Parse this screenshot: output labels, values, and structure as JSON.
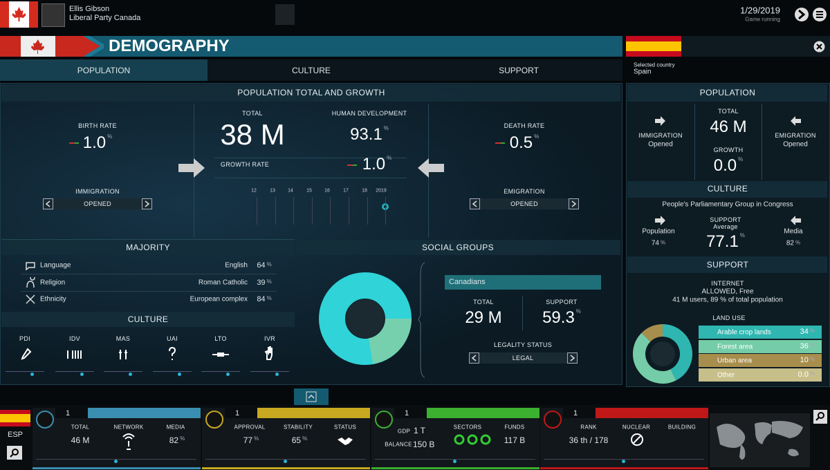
{
  "top_bar": {
    "player_name": "Ellis Gibson",
    "party": "Liberal Party Canada",
    "date": "1/29/2019",
    "status": "Game running"
  },
  "header": {
    "title": "DEMOGRAPHY"
  },
  "tabs": [
    "POPULATION",
    "CULTURE",
    "SUPPORT"
  ],
  "selected_country": {
    "label": "Selected country",
    "name": "Spain"
  },
  "growth": {
    "title": "POPULATION TOTAL AND GROWTH",
    "birth_rate": {
      "label": "BIRTH RATE",
      "value": "1.0",
      "unit": "%"
    },
    "total": {
      "label": "TOTAL",
      "value": "38 M"
    },
    "human_development": {
      "label": "HUMAN DEVELOPMENT",
      "value": "93.1",
      "unit": "%"
    },
    "growth_rate": {
      "label": "GROWTH RATE",
      "value": "1.0",
      "unit": "%"
    },
    "death_rate": {
      "label": "DEATH RATE",
      "value": "0.5",
      "unit": "%"
    },
    "years": [
      "12",
      "13",
      "14",
      "15",
      "16",
      "17",
      "18",
      "2019"
    ],
    "immigration": {
      "label": "IMMIGRATION",
      "value": "OPENED"
    },
    "emigration": {
      "label": "EMIGRATION",
      "value": "OPENED"
    }
  },
  "majority": {
    "title": "MAJORITY",
    "rows": [
      {
        "name": "Language",
        "value": "English",
        "pct": "64",
        "unit": "%"
      },
      {
        "name": "Religion",
        "value": "Roman Catholic",
        "pct": "39",
        "unit": "%"
      },
      {
        "name": "Ethnicity",
        "value": "European complex",
        "pct": "84",
        "unit": "%"
      }
    ]
  },
  "culture": {
    "title": "CULTURE",
    "dimensions": [
      "PDI",
      "IDV",
      "MAS",
      "UAI",
      "LTO",
      "IVR"
    ]
  },
  "social_groups": {
    "title": "SOCIAL GROUPS",
    "group": "Canadians",
    "total": {
      "label": "TOTAL",
      "value": "29 M"
    },
    "support": {
      "label": "SUPPORT",
      "value": "59.3",
      "unit": "%"
    },
    "legality": {
      "label": "LEGALITY STATUS",
      "value": "LEGAL"
    }
  },
  "country_panel": {
    "population": {
      "title": "POPULATION",
      "immigration": {
        "label": "IMMIGRATION",
        "value": "Opened"
      },
      "total": {
        "label": "TOTAL",
        "value": "46 M"
      },
      "growth": {
        "label": "GROWTH",
        "value": "0.0",
        "unit": "%"
      },
      "emigration": {
        "label": "EMIGRATION",
        "value": "Opened"
      }
    },
    "culture": {
      "title": "CULTURE",
      "group": "People's Parliamentary Group in Congress",
      "population": {
        "label": "Population",
        "value": "74",
        "unit": "%"
      },
      "support": {
        "label": "SUPPORT",
        "sublabel": "Average",
        "value": "77.1",
        "unit": "%"
      },
      "media": {
        "label": "Media",
        "value": "82",
        "unit": "%"
      }
    },
    "support": {
      "title": "SUPPORT",
      "internet": {
        "label": "INTERNET",
        "status": "ALLOWED, Free",
        "users": "41 M users, 89 % of total population"
      }
    },
    "land_use": {
      "title": "LAND USE",
      "rows": [
        {
          "name": "Arable crop lands",
          "value": 34,
          "unit": "%",
          "color": "#2fb6b0"
        },
        {
          "name": "Forest area",
          "value": 36,
          "unit": "%",
          "color": "#74cda8"
        },
        {
          "name": "Urban area",
          "value": 10,
          "unit": "%",
          "color": "#a88e4c"
        },
        {
          "name": "Other",
          "value": 0,
          "value_label": "0.0",
          "unit": "%",
          "color": "#c7bf8a"
        }
      ]
    }
  },
  "bottom_bar": {
    "country": "ESP",
    "society": {
      "level": "1",
      "total": {
        "label": "TOTAL",
        "value": "46 M"
      },
      "network": {
        "label": "NETWORK"
      },
      "media": {
        "label": "MEDIA",
        "value": "82",
        "unit": "%"
      }
    },
    "politics": {
      "level": "1",
      "approval": {
        "label": "APPROVAL",
        "value": "77",
        "unit": "%"
      },
      "stability": {
        "label": "STABILITY",
        "value": "65",
        "unit": "%"
      },
      "status": {
        "label": "STATUS"
      }
    },
    "economy": {
      "level": "1",
      "gdp": {
        "label": "GDP",
        "value": "1 T"
      },
      "balance": {
        "label": "BALANCE",
        "value": "150 B"
      },
      "sectors": {
        "label": "SECTORS"
      },
      "funds": {
        "label": "FUNDS",
        "value": "117 B"
      }
    },
    "military": {
      "level": "1",
      "rank": {
        "label": "RANK",
        "value": "36 th / 178"
      },
      "nuclear": {
        "label": "NUCLEAR"
      },
      "building": {
        "label": "BUILDING"
      }
    }
  }
}
